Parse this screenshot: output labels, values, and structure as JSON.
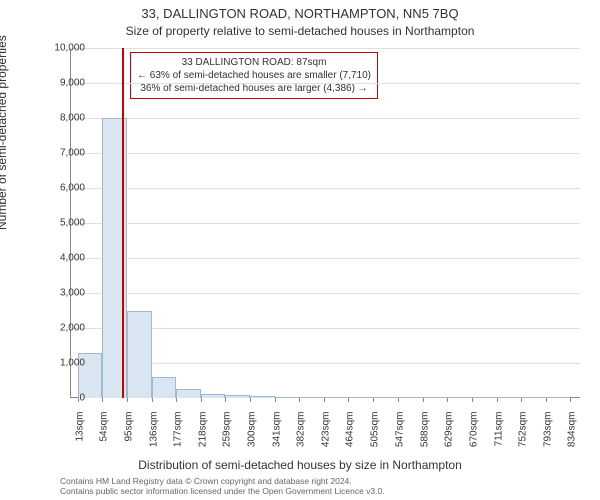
{
  "chart": {
    "type": "histogram",
    "title_main": "33, DALLINGTON ROAD, NORTHAMPTON, NN5 7BQ",
    "title_sub": "Size of property relative to semi-detached houses in Northampton",
    "y_axis": {
      "label": "Number of semi-detached properties",
      "min": 0,
      "max": 10000,
      "tick_step": 1000,
      "tick_labels": [
        "0",
        "1,000",
        "2,000",
        "3,000",
        "4,000",
        "5,000",
        "6,000",
        "7,000",
        "8,000",
        "9,000",
        "10,000"
      ]
    },
    "x_axis": {
      "label": "Distribution of semi-detached houses by size in Northampton",
      "min": 0,
      "max": 850,
      "tick_values": [
        13,
        54,
        95,
        136,
        177,
        218,
        259,
        300,
        341,
        382,
        423,
        464,
        505,
        547,
        588,
        629,
        670,
        711,
        752,
        793,
        834
      ],
      "tick_labels": [
        "13sqm",
        "54sqm",
        "95sqm",
        "136sqm",
        "177sqm",
        "218sqm",
        "259sqm",
        "300sqm",
        "341sqm",
        "382sqm",
        "423sqm",
        "464sqm",
        "505sqm",
        "547sqm",
        "588sqm",
        "629sqm",
        "670sqm",
        "711sqm",
        "752sqm",
        "793sqm",
        "834sqm"
      ]
    },
    "bars": {
      "bin_width": 41,
      "left_edges": [
        13,
        54,
        95,
        136,
        177,
        218,
        259,
        300,
        341,
        382,
        423,
        464,
        505,
        547,
        588,
        629,
        670,
        711,
        752,
        793
      ],
      "counts": [
        1300,
        8000,
        2500,
        600,
        250,
        120,
        80,
        50,
        40,
        30,
        20,
        15,
        10,
        10,
        8,
        5,
        5,
        3,
        2,
        2
      ],
      "fill_color": "#d9e6f2",
      "border_color": "#a0b8d0"
    },
    "marker": {
      "value": 87,
      "line_color": "#cc0000"
    },
    "callout": {
      "border_color": "#cc0000",
      "line1": "33 DALLINGTON ROAD: 87sqm",
      "line2": "← 63% of semi-detached houses are smaller (7,710)",
      "line3": "36% of semi-detached houses are larger (4,386) →"
    },
    "attribution": {
      "line1": "Contains HM Land Registry data © Crown copyright and database right 2024.",
      "line2": "Contains public sector information licensed under the Open Government Licence v3.0."
    },
    "style": {
      "background_color": "#ffffff",
      "grid_color": "#e0e0e0",
      "axis_color": "#888888",
      "title_fontsize": 13,
      "subtitle_fontsize": 12,
      "axis_label_fontsize": 12,
      "tick_fontsize": 10,
      "callout_fontsize": 10,
      "attribution_fontsize": 8.5
    }
  }
}
